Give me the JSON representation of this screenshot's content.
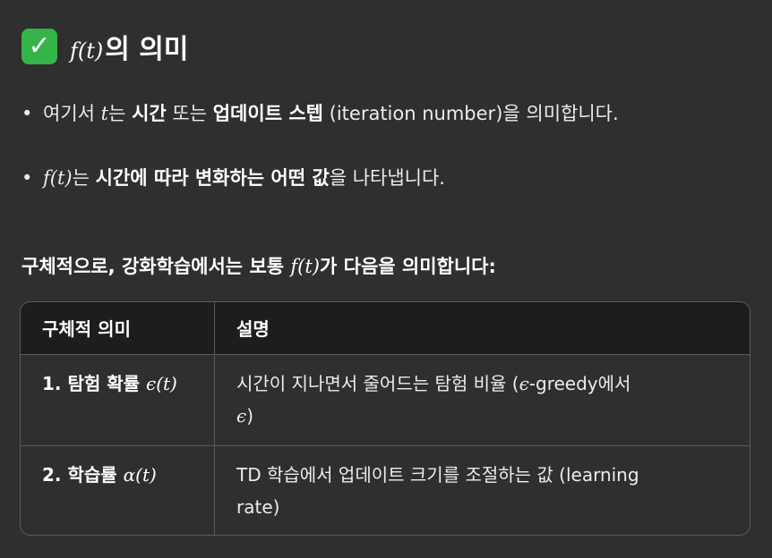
{
  "heading": {
    "icon": "check-mark-icon",
    "icon_color": "#35b44a",
    "math": "f(t)",
    "text": "의 의미"
  },
  "bullets": [
    {
      "pre": "여기서 ",
      "math": "t",
      "mid": "는 ",
      "bold1": "시간",
      "mid2": " 또는 ",
      "bold2": "업데이트 스텝",
      "post": " (iteration number)을 의미합니다."
    },
    {
      "math": "f(t)",
      "mid": "는 ",
      "bold1": "시간에 따라 변화하는 어떤 값",
      "post": "을 나타냅니다."
    }
  ],
  "subheading": {
    "pre": "구체적으로, 강화학습에서는 보통 ",
    "math": "f(t)",
    "post": "가 다음을 의미합니다:"
  },
  "table": {
    "headers": [
      "구체적 의미",
      "설명"
    ],
    "rows": [
      {
        "label": "1. 탐험 확률 ",
        "math": "ϵ(t)",
        "desc_pre": "시간이 지나면서 줄어드는 탐험 비율 (",
        "desc_math": "ϵ",
        "desc_mid": "-greedy에서",
        "desc_math2": "ϵ",
        "desc_post": ")"
      },
      {
        "label": "2. 학습률 ",
        "math": "α(t)",
        "desc_pre": "TD 학습에서 업데이트 크기를 조절하는 값 (learning",
        "desc_line2": "rate)"
      }
    ]
  }
}
